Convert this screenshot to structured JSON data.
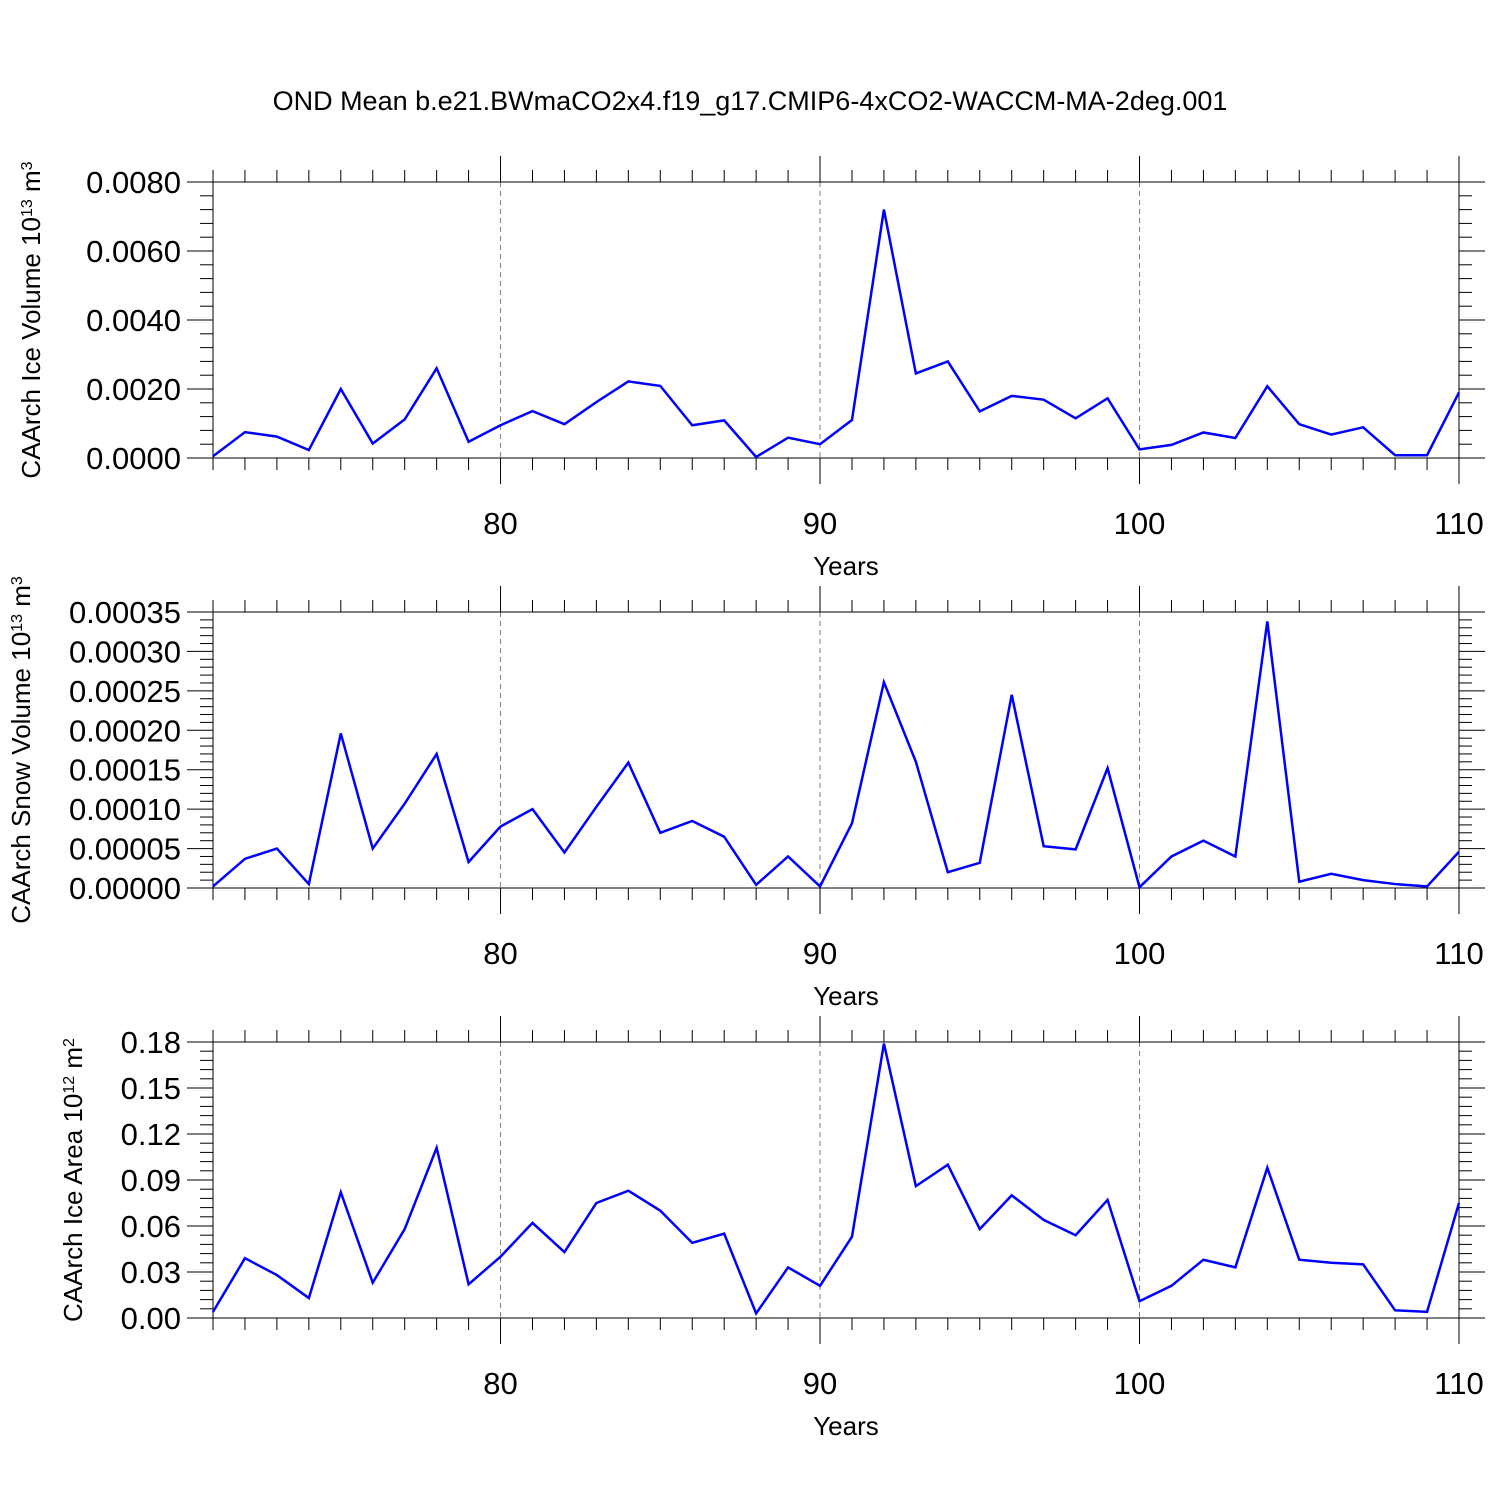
{
  "figure_title": "OND Mean b.e21.BWmaCO2x4.f19_g17.CMIP6-4xCO2-WACCM-MA-2deg.001",
  "colors": {
    "line": "#0000ff",
    "axis": "#000000",
    "grid": "#808080",
    "background": "#ffffff"
  },
  "chart_data": [
    {
      "type": "line",
      "title": "",
      "xlabel": "Years",
      "ylabel": "CAArch Ice Volume",
      "ylabel_unit": {
        "base": "10",
        "base_exp": "13",
        "unit": "m",
        "unit_exp": "3"
      },
      "xlim": [
        71,
        110
      ],
      "ylim": [
        0,
        0.008
      ],
      "xticks": [
        80,
        90,
        100,
        110
      ],
      "xtick_labels": [
        "80",
        "90",
        "100",
        "110"
      ],
      "yticks": [
        0,
        0.002,
        0.004,
        0.006,
        0.008
      ],
      "ytick_labels": [
        "0.0000",
        "0.0020",
        "0.0040",
        "0.0060",
        "0.0080"
      ],
      "grid": "vertical dashed at major x ticks",
      "x": [
        71,
        72,
        73,
        74,
        75,
        76,
        77,
        78,
        79,
        80,
        81,
        82,
        83,
        84,
        85,
        86,
        87,
        88,
        89,
        90,
        91,
        92,
        93,
        94,
        95,
        96,
        97,
        98,
        99,
        100,
        101,
        102,
        103,
        104,
        105,
        106,
        107,
        108,
        109,
        110
      ],
      "series": [
        {
          "values": [
            5e-05,
            0.00075,
            0.00062,
            0.00023,
            0.002,
            0.00042,
            0.00112,
            0.0026,
            0.00047,
            0.00095,
            0.00136,
            0.00098,
            0.00162,
            0.00222,
            0.00209,
            0.00095,
            0.00109,
            3e-05,
            0.00059,
            0.0004,
            0.0011,
            0.0072,
            0.00245,
            0.0028,
            0.00135,
            0.0018,
            0.00169,
            0.00115,
            0.00173,
            0.00025,
            0.00038,
            0.00074,
            0.00058,
            0.00208,
            0.00098,
            0.00068,
            0.00089,
            8e-05,
            8e-05,
            0.0019
          ]
        }
      ]
    },
    {
      "type": "line",
      "title": "",
      "xlabel": "Years",
      "ylabel": "CAArch Snow Volume",
      "ylabel_unit": {
        "base": "10",
        "base_exp": "13",
        "unit": "m",
        "unit_exp": "3"
      },
      "xlim": [
        71,
        110
      ],
      "ylim": [
        0,
        0.00035
      ],
      "xticks": [
        80,
        90,
        100,
        110
      ],
      "xtick_labels": [
        "80",
        "90",
        "100",
        "110"
      ],
      "yticks": [
        0,
        5e-05,
        0.0001,
        0.00015,
        0.0002,
        0.00025,
        0.0003,
        0.00035
      ],
      "ytick_labels": [
        "0.00000",
        "0.00005",
        "0.00010",
        "0.00015",
        "0.00020",
        "0.00025",
        "0.00030",
        "0.00035"
      ],
      "grid": "vertical dashed at major x ticks",
      "x": [
        71,
        72,
        73,
        74,
        75,
        76,
        77,
        78,
        79,
        80,
        81,
        82,
        83,
        84,
        85,
        86,
        87,
        88,
        89,
        90,
        91,
        92,
        93,
        94,
        95,
        96,
        97,
        98,
        99,
        100,
        101,
        102,
        103,
        104,
        105,
        106,
        107,
        108,
        109,
        110
      ],
      "series": [
        {
          "values": [
            2e-06,
            3.7e-05,
            5e-05,
            5e-06,
            0.000196,
            5e-05,
            0.000107,
            0.00017,
            3.3e-05,
            7.8e-05,
            0.0001,
            4.5e-05,
            0.000103,
            0.000159,
            7e-05,
            8.5e-05,
            6.5e-05,
            4e-06,
            4e-05,
            2e-06,
            8.2e-05,
            0.000261,
            0.00016,
            2e-05,
            3.2e-05,
            0.000245,
            5.3e-05,
            4.9e-05,
            0.000152,
            1e-06,
            4e-05,
            6e-05,
            4e-05,
            0.000338,
            8e-06,
            1.8e-05,
            1e-05,
            5e-06,
            2e-06,
            4.6e-05
          ]
        }
      ]
    },
    {
      "type": "line",
      "title": "",
      "xlabel": "Years",
      "ylabel": "CAArch Ice Area",
      "ylabel_unit": {
        "base": "10",
        "base_exp": "12",
        "unit": "m",
        "unit_exp": "2"
      },
      "xlim": [
        71,
        110
      ],
      "ylim": [
        0,
        0.18
      ],
      "xticks": [
        80,
        90,
        100,
        110
      ],
      "xtick_labels": [
        "80",
        "90",
        "100",
        "110"
      ],
      "yticks": [
        0,
        0.03,
        0.06,
        0.09,
        0.12,
        0.15,
        0.18
      ],
      "ytick_labels": [
        "0.00",
        "0.03",
        "0.06",
        "0.09",
        "0.12",
        "0.15",
        "0.18"
      ],
      "grid": "vertical dashed at major x ticks",
      "x": [
        71,
        72,
        73,
        74,
        75,
        76,
        77,
        78,
        79,
        80,
        81,
        82,
        83,
        84,
        85,
        86,
        87,
        88,
        89,
        90,
        91,
        92,
        93,
        94,
        95,
        96,
        97,
        98,
        99,
        100,
        101,
        102,
        103,
        104,
        105,
        106,
        107,
        108,
        109,
        110
      ],
      "series": [
        {
          "values": [
            0.004,
            0.039,
            0.028,
            0.013,
            0.082,
            0.023,
            0.058,
            0.111,
            0.022,
            0.04,
            0.062,
            0.043,
            0.075,
            0.083,
            0.07,
            0.049,
            0.055,
            0.003,
            0.033,
            0.021,
            0.053,
            0.179,
            0.086,
            0.1,
            0.058,
            0.08,
            0.064,
            0.054,
            0.077,
            0.011,
            0.021,
            0.038,
            0.033,
            0.098,
            0.038,
            0.036,
            0.035,
            0.005,
            0.004,
            0.075
          ]
        }
      ]
    }
  ]
}
